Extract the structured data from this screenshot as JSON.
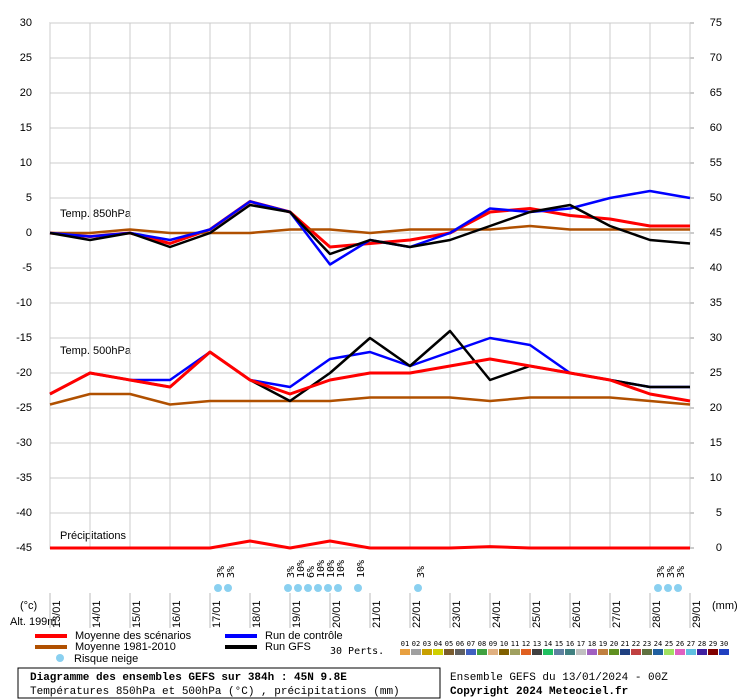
{
  "chart_data": {
    "type": "line",
    "title": "Diagramme des ensembles GEFS sur 384h : 45N 9.8E",
    "subtitle": "Températures 850hPa et 500hPa (°C) , précipitations (mm)",
    "run": "Ensemble GEFS du 13/01/2024 - 00Z",
    "copyright": "Copyright 2024 Meteociel.fr",
    "y_label": "(°c)",
    "y2_label": "(mm)",
    "altitude": "Alt. 199m",
    "annotations": [
      "Temp. 850hPa",
      "Temp. 500hPa",
      "Précipitations"
    ],
    "snow_legend": "Risque neige",
    "snow_risk": [
      "3%",
      "3%",
      "3%",
      "10%",
      "6%",
      "10%",
      "10%",
      "10%",
      "10%",
      "3%",
      "3%",
      "3%",
      "3%"
    ],
    "categories": [
      "13/01",
      "14/01",
      "15/01",
      "16/01",
      "17/01",
      "18/01",
      "19/01",
      "20/01",
      "21/01",
      "22/01",
      "23/01",
      "24/01",
      "25/01",
      "26/01",
      "27/01",
      "28/01",
      "29/01"
    ],
    "ylim": [
      -45,
      30
    ],
    "yticks": [
      -45,
      -40,
      -35,
      -30,
      -25,
      -20,
      -15,
      -10,
      -5,
      0,
      5,
      10,
      15,
      20,
      25,
      30
    ],
    "y2lim": [
      0,
      75
    ],
    "y2ticks": [
      0,
      5,
      10,
      15,
      20,
      25,
      30,
      35,
      40,
      45,
      50,
      55,
      60,
      65,
      70,
      75
    ],
    "grid": true,
    "series": [
      {
        "name": "Moyenne des scénarios",
        "color": "#ff0000",
        "values": [
          0,
          -0.5,
          0,
          -1.5,
          0.5,
          4.5,
          3,
          -2,
          -1.5,
          -1,
          0,
          3,
          3.5,
          2.5,
          2,
          1,
          1
        ]
      },
      {
        "name": "Moyenne 1981-2010",
        "color": "#b05000",
        "values": [
          0,
          0,
          0.5,
          0,
          0,
          0,
          0.5,
          0.5,
          0,
          0.5,
          0.5,
          0.5,
          1,
          0.5,
          0.5,
          0.5,
          0.5
        ]
      },
      {
        "name": "Run de contrôle",
        "color": "#0000ff",
        "values": [
          0,
          -0.5,
          0,
          -1,
          0.5,
          4.5,
          3,
          -4.5,
          -1,
          -2,
          0,
          3.5,
          3,
          3.5,
          5,
          6,
          5
        ]
      },
      {
        "name": "Run GFS",
        "color": "#000000",
        "values": [
          0,
          -1,
          0,
          -2,
          0,
          4,
          3,
          -3,
          -1,
          -2,
          -1,
          1,
          3,
          4,
          1,
          -1,
          -1.5
        ]
      },
      {
        "name": "Moyenne 1981-2010",
        "color": "#b05000",
        "values": [
          -24.5,
          -23,
          -23,
          -24.5,
          -24,
          -24,
          -24,
          -24,
          -23.5,
          -23.5,
          -23.5,
          -24,
          -23.5,
          -23.5,
          -23.5,
          -24,
          -24.5
        ]
      },
      {
        "name": "Run de contrôle",
        "color": "#0000ff",
        "values": [
          -23,
          -20,
          -21,
          -21,
          -17,
          -21,
          -22,
          -18,
          -17,
          -19,
          -17,
          -15,
          -16,
          -20,
          -21,
          -22,
          -22
        ]
      },
      {
        "name": "Run GFS",
        "color": "#000000",
        "values": [
          -23,
          -20,
          -21,
          -22,
          -17,
          -21,
          -24,
          -20,
          -15,
          -19,
          -14,
          -21,
          -19,
          -20,
          -21,
          -22,
          -22
        ]
      },
      {
        "name": "Moyenne des scénarios",
        "color": "#ff0000",
        "values": [
          -23,
          -20,
          -21,
          -22,
          -17,
          -21,
          -23,
          -21,
          -20,
          -20,
          -19,
          -18,
          -19,
          -20,
          -21,
          -23,
          -24
        ]
      },
      {
        "name": "Moyenne des scénarios",
        "color": "#ff0000",
        "axis": "y2",
        "values": [
          0,
          0,
          0,
          0,
          0,
          1,
          0,
          1,
          0,
          0,
          0,
          0.2,
          0,
          0,
          0,
          0,
          0
        ]
      }
    ],
    "perturbations": {
      "label": "30 Perts.",
      "members": [
        {
          "name": "01",
          "color": "#e8a040"
        },
        {
          "name": "02",
          "color": "#a0a0a0"
        },
        {
          "name": "03",
          "color": "#c8a000"
        },
        {
          "name": "04",
          "color": "#d0d000"
        },
        {
          "name": "05",
          "color": "#7a5c2e"
        },
        {
          "name": "06",
          "color": "#606060"
        },
        {
          "name": "07",
          "color": "#4060c0"
        },
        {
          "name": "08",
          "color": "#40a040"
        },
        {
          "name": "09",
          "color": "#e0b080"
        },
        {
          "name": "10",
          "color": "#806000"
        },
        {
          "name": "11",
          "color": "#a0a060"
        },
        {
          "name": "12",
          "color": "#e06020"
        },
        {
          "name": "13",
          "color": "#404040"
        },
        {
          "name": "14",
          "color": "#20c060"
        },
        {
          "name": "15",
          "color": "#6080a0"
        },
        {
          "name": "16",
          "color": "#408080"
        },
        {
          "name": "17",
          "color": "#c0c0c0"
        },
        {
          "name": "18",
          "color": "#a060c0"
        },
        {
          "name": "19",
          "color": "#c08040"
        },
        {
          "name": "20",
          "color": "#609020"
        },
        {
          "name": "21",
          "color": "#204080"
        },
        {
          "name": "22",
          "color": "#c04040"
        },
        {
          "name": "23",
          "color": "#607040"
        },
        {
          "name": "24",
          "color": "#2060a0"
        },
        {
          "name": "25",
          "color": "#a0e060"
        },
        {
          "name": "26",
          "color": "#e060c0"
        },
        {
          "name": "27",
          "color": "#60c0e0"
        },
        {
          "name": "28",
          "color": "#4020a0"
        },
        {
          "name": "29",
          "color": "#800000"
        },
        {
          "name": "30",
          "color": "#2040c0"
        }
      ]
    }
  }
}
